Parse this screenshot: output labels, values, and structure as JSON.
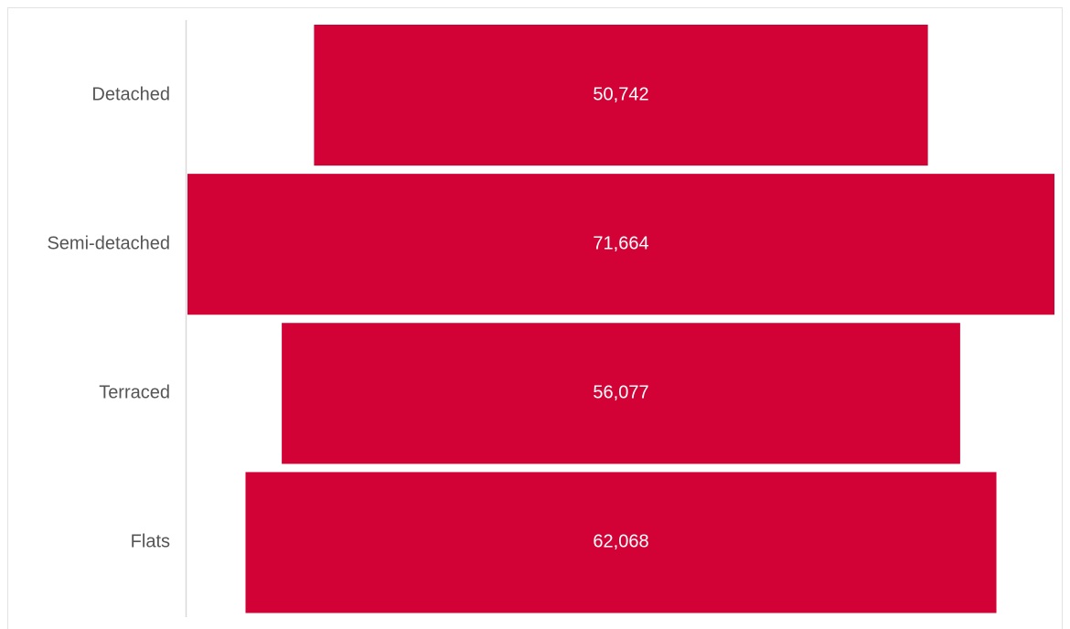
{
  "chart_data": {
    "type": "funnel",
    "categories": [
      "Detached",
      "Semi-detached",
      "Terraced",
      "Flats"
    ],
    "values": [
      50742,
      71664,
      56077,
      62068
    ],
    "value_labels": [
      "50,742",
      "71,664",
      "56,077",
      "62,068"
    ],
    "color": "#d30236"
  }
}
